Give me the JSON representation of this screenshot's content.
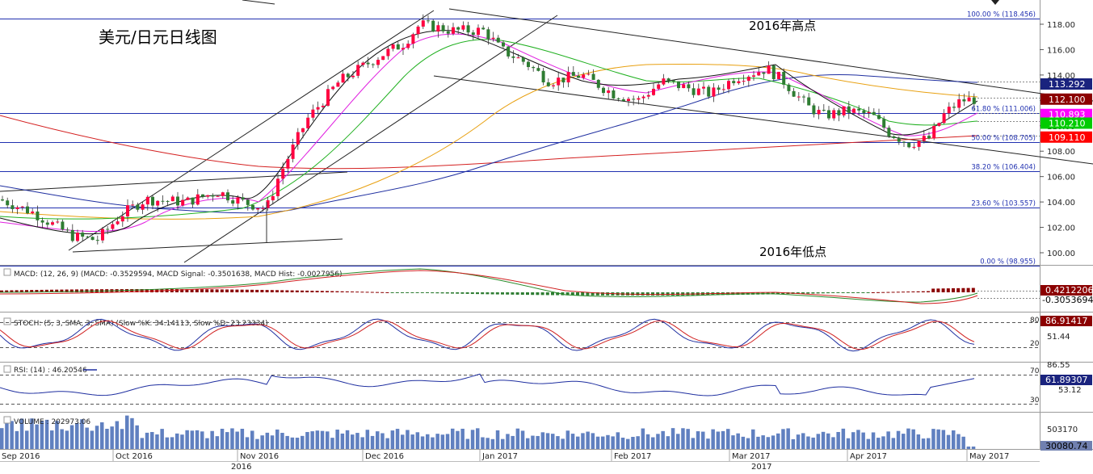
{
  "title": "美元/日元日线图",
  "annotations": {
    "high_note": "2016年高点",
    "low_note": "2016年低点"
  },
  "price_axis": {
    "ticks": [
      "118.00",
      "116.00",
      "114.00",
      "112.00",
      "110.00",
      "108.00",
      "106.00",
      "104.00",
      "102.00",
      "100.00"
    ]
  },
  "fib_levels": [
    {
      "label": "100.00 % (118.456)",
      "value": 118.456
    },
    {
      "label": "61.80 % (111.006)",
      "value": 111.006
    },
    {
      "label": "50.00 % (108.705)",
      "value": 108.705
    },
    {
      "label": "38.20 % (106.404)",
      "value": 106.404
    },
    {
      "label": "23.60 % (103.557)",
      "value": 103.557
    },
    {
      "label": "0.00 % (98.955)",
      "value": 98.955
    }
  ],
  "price_tags": [
    {
      "text": "113.292",
      "value": 113.292,
      "color": "#1a237e"
    },
    {
      "text": "112.100",
      "value": 112.1,
      "color": "#8b0000"
    },
    {
      "text": "110.893",
      "value": 110.893,
      "color": "#ff00ff"
    },
    {
      "text": "110.210",
      "value": 110.21,
      "color": "#00cc00"
    },
    {
      "text": "109.110",
      "value": 109.11,
      "color": "#ff0000"
    }
  ],
  "macd": {
    "label": "MACD: (12, 26, 9) (MACD: -0.3529594, MACD Signal: -0.3501638, MACD Hist: -0.0027956)",
    "tags": [
      {
        "text": "0.4212206",
        "color": "#8b0000"
      },
      {
        "text": "-0.3053694",
        "color": "#00aa00"
      }
    ]
  },
  "stoch": {
    "label": "STOCH: (5, 3, SMA, 3, SMA) (Slow %K: 34.14113, Slow %D: 23.23334)",
    "ticks": [
      "80",
      "20"
    ],
    "axis": [
      "51.44"
    ],
    "tag": {
      "text": "86.91417",
      "color": "#8b0000"
    }
  },
  "rsi": {
    "label": "RSI: (14) : 46.20546",
    "ticks": [
      "70",
      "30"
    ],
    "axis": [
      "86.55",
      "53.12"
    ],
    "tag": {
      "text": "61.89307",
      "color": "#1a237e"
    }
  },
  "volume": {
    "label": "VOLUME : 202973.06",
    "axis": [
      "503170"
    ],
    "tag": {
      "text": "30080.74",
      "color": "#4060a0"
    }
  },
  "time_axis": {
    "months": [
      "Sep 2016",
      "Oct 2016",
      "Nov 2016",
      "Dec 2016",
      "Jan 2017",
      "Feb 2017",
      "Mar 2017",
      "Apr 2017",
      "May 2017"
    ],
    "years": [
      "2016",
      "2017"
    ]
  },
  "chart_data": {
    "type": "line",
    "instrument": "美元/日元日线图",
    "y_axis_range": [
      99.0,
      119.0
    ],
    "monthly_close_estimates": {
      "x": [
        "Sep 2016",
        "Oct 2016",
        "Nov 2016",
        "Dec 2016",
        "Jan 2017",
        "Feb 2017",
        "Mar 2017",
        "Apr 2017",
        "May 2017"
      ],
      "y": [
        102.5,
        104.0,
        104.5,
        117.0,
        115.0,
        113.5,
        113.0,
        108.5,
        112.1
      ]
    }
  }
}
